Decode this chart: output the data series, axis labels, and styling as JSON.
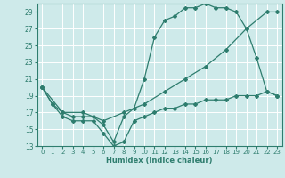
{
  "title": "",
  "xlabel": "Humidex (Indice chaleur)",
  "xlim": [
    -0.5,
    23.5
  ],
  "ylim": [
    13,
    30
  ],
  "yticks": [
    13,
    15,
    17,
    19,
    21,
    23,
    25,
    27,
    29
  ],
  "xticks": [
    0,
    1,
    2,
    3,
    4,
    5,
    6,
    7,
    8,
    9,
    10,
    11,
    12,
    13,
    14,
    15,
    16,
    17,
    18,
    19,
    20,
    21,
    22,
    23
  ],
  "bg_color": "#ceeaea",
  "line_color": "#2e7d6e",
  "grid_color": "#ffffff",
  "line1_x": [
    0,
    1,
    2,
    3,
    4,
    5,
    6,
    7,
    8,
    9,
    10,
    11,
    12,
    13,
    14,
    15,
    16,
    17,
    18,
    19,
    20,
    21,
    22,
    23
  ],
  "line1_y": [
    20,
    18,
    16.5,
    16,
    16,
    16,
    14.5,
    13,
    13.5,
    16,
    16.5,
    17,
    17.5,
    17.5,
    18,
    18,
    18.5,
    18.5,
    18.5,
    19,
    19,
    19,
    19.5,
    19
  ],
  "line2_x": [
    0,
    1,
    2,
    3,
    4,
    5,
    6,
    7,
    8,
    9,
    10,
    11,
    12,
    13,
    14,
    15,
    16,
    17,
    18,
    19,
    20,
    21,
    22,
    23
  ],
  "line2_y": [
    20,
    18,
    17,
    16.5,
    16.5,
    16.5,
    15.5,
    13.5,
    16.5,
    17.5,
    21,
    26,
    28,
    28.5,
    29.5,
    29.5,
    30,
    29.5,
    29.5,
    29,
    27,
    23.5,
    19.5,
    19
  ],
  "line3_x": [
    0,
    2,
    4,
    6,
    8,
    10,
    12,
    14,
    16,
    18,
    20,
    22,
    23
  ],
  "line3_y": [
    20,
    17,
    17,
    16,
    17,
    18,
    19.5,
    21,
    22.5,
    24.5,
    27,
    29,
    29
  ]
}
